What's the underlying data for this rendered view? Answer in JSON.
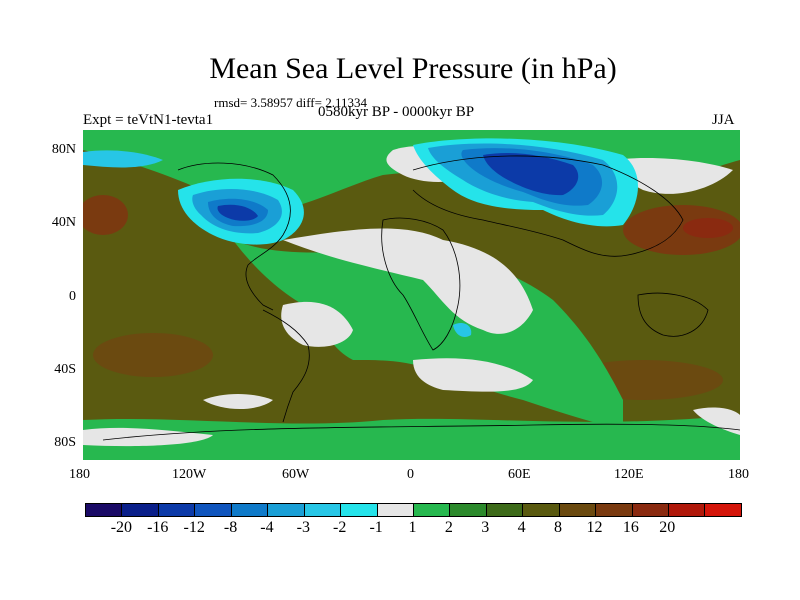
{
  "title": "Mean Sea Level Pressure (in hPa)",
  "stats": "rmsd= 3.58957 diff= 2.11334",
  "expt": "Expt = teVtN1-tevta1",
  "period": "0580kyr BP - 0000kyr BP",
  "season": "JJA",
  "x_ticks": [
    "180",
    "120W",
    "60W",
    "0",
    "60E",
    "120E",
    "180"
  ],
  "y_ticks": [
    "80N",
    "40N",
    "0",
    "40S",
    "80S"
  ],
  "colorbar": {
    "colors": [
      "#1a0a66",
      "#0a1f8a",
      "#0c3aa8",
      "#1055bd",
      "#0f7ac9",
      "#1a9fd6",
      "#27c6e6",
      "#25e3ea",
      "#e6e6e6",
      "#27b84f",
      "#2c8a2c",
      "#3e6b1a",
      "#5a5a10",
      "#6b4a10",
      "#7a3a10",
      "#8a2a10",
      "#b0180a",
      "#d4150a"
    ],
    "labels": [
      "-20",
      "-16",
      "-12",
      "-8",
      "-4",
      "-3",
      "-2",
      "-1",
      "1",
      "2",
      "3",
      "4",
      "8",
      "12",
      "16",
      "20"
    ]
  }
}
